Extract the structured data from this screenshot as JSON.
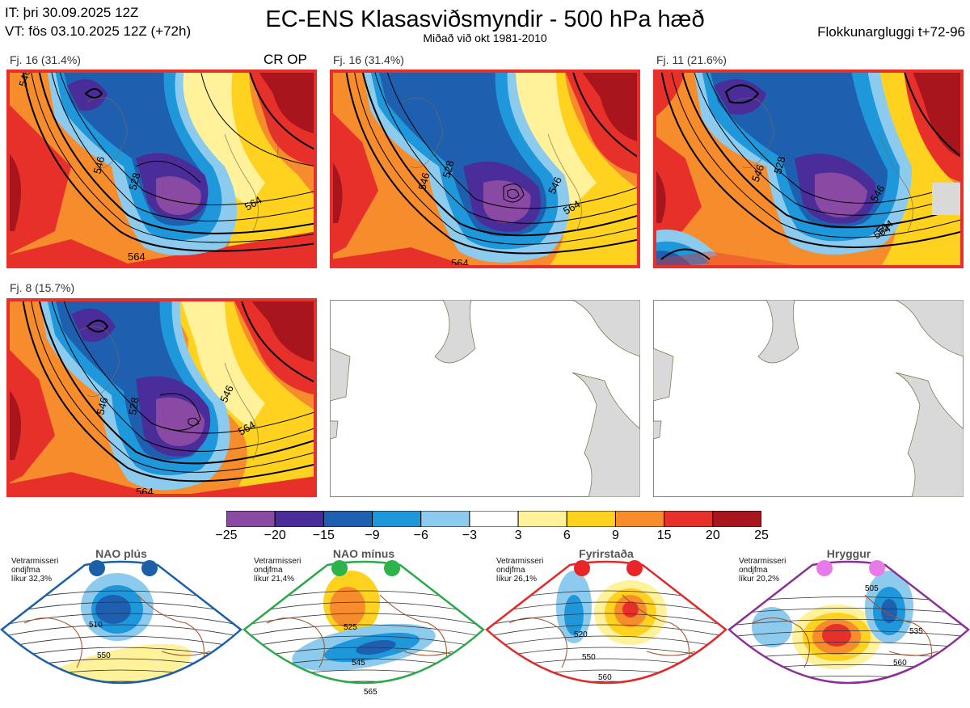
{
  "header": {
    "init_time": "IT: þri 30.09.2025 12Z",
    "valid_time": "VT: fös 03.10.2025 12Z  (+72h)",
    "title": "EC-ENS Klasasviðsmyndir - 500 hPa hæð",
    "subtitle": "Miðað við okt 1981-2010",
    "window": "Flokkunargluggi t+72-96"
  },
  "panels": [
    {
      "label": "Fj. 16 (31.4%)",
      "badge": "CR OP",
      "contours": [
        "546",
        "528",
        "564",
        "564",
        "546"
      ],
      "empty": false
    },
    {
      "label": "Fj. 16 (31.4%)",
      "badge": "",
      "contours": [
        "546",
        "528",
        "564",
        "564",
        "546"
      ],
      "empty": false
    },
    {
      "label": "Fj. 11 (21.6%)",
      "badge": "",
      "contours": [
        "546",
        "528",
        "564",
        "564",
        "546"
      ],
      "empty": false
    },
    {
      "label": "Fj. 8 (15.7%)",
      "badge": "",
      "contours": [
        "546",
        "528",
        "564",
        "564",
        "546"
      ],
      "empty": false
    },
    {
      "label": "",
      "badge": "",
      "contours": [],
      "empty": true
    },
    {
      "label": "",
      "badge": "",
      "contours": [],
      "empty": true
    }
  ],
  "colorbar": {
    "colors": [
      "#8a4aa4",
      "#4b2d9a",
      "#1f5fb0",
      "#1f97db",
      "#8ccbee",
      "#ffffff",
      "#fff29a",
      "#ffd21f",
      "#f68c2c",
      "#e8302b",
      "#a8151c"
    ],
    "labels": [
      "−25",
      "−20",
      "−15",
      "−9",
      "−6",
      "−3",
      "3",
      "6",
      "9",
      "15",
      "20",
      "25"
    ]
  },
  "regimes": [
    {
      "title": "NAO plús",
      "stats": [
        "Vetrarmisseri",
        "ondjfma",
        "líkur 32,3%"
      ],
      "contours": [
        "510",
        "550"
      ],
      "border": "#1a5fa8",
      "dot": "#1a5fa8"
    },
    {
      "title": "NAO mínus",
      "stats": [
        "Vetrarmisseri",
        "ondjfma",
        "líkur 21,4%"
      ],
      "contours": [
        "525",
        "545",
        "565"
      ],
      "border": "#2aa84a",
      "dot": "#2db24c"
    },
    {
      "title": "Fyrirstaða",
      "stats": [
        "Vetrarmisseri",
        "ondjfma",
        "líkur 26,1%"
      ],
      "contours": [
        "520",
        "550",
        "560"
      ],
      "border": "#e02a2a",
      "dot": "#e8262a"
    },
    {
      "title": "Hryggur",
      "stats": [
        "Vetrarmisseri",
        "ondjfma",
        "líkur 20,2%"
      ],
      "contours": [
        "505",
        "535",
        "560"
      ],
      "border": "#8b2f96",
      "dot": "#e87ae8"
    }
  ]
}
